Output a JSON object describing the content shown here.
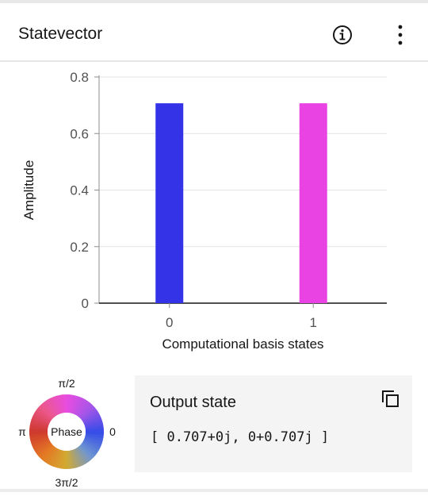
{
  "header": {
    "title": "Statevector",
    "info_icon": "info-circle-icon",
    "menu_icon": "overflow-menu-vertical-icon"
  },
  "chart_data": {
    "type": "bar",
    "categories": [
      "0",
      "1"
    ],
    "values": [
      0.707,
      0.707
    ],
    "bar_colors": [
      "#3533e8",
      "#e943e3"
    ],
    "xlabel": "Computational basis states",
    "ylabel": "Amplitude",
    "ylim": [
      0,
      0.8
    ],
    "yticks": [
      "0",
      "0.2",
      "0.4",
      "0.6",
      "0.8"
    ],
    "grid": true
  },
  "phase_legend": {
    "center_label": "Phase",
    "label_top": "π/2",
    "label_right": "0",
    "label_left": "π",
    "label_bottom": "3π/2"
  },
  "output": {
    "title": "Output state",
    "value": "[ 0.707+0j, 0+0.707j ]",
    "copy_icon": "copy-icon"
  },
  "colors": {
    "bar_0": "#3533e8",
    "bar_1": "#e943e3",
    "card_bg": "#f4f4f4",
    "text": "#161616"
  }
}
